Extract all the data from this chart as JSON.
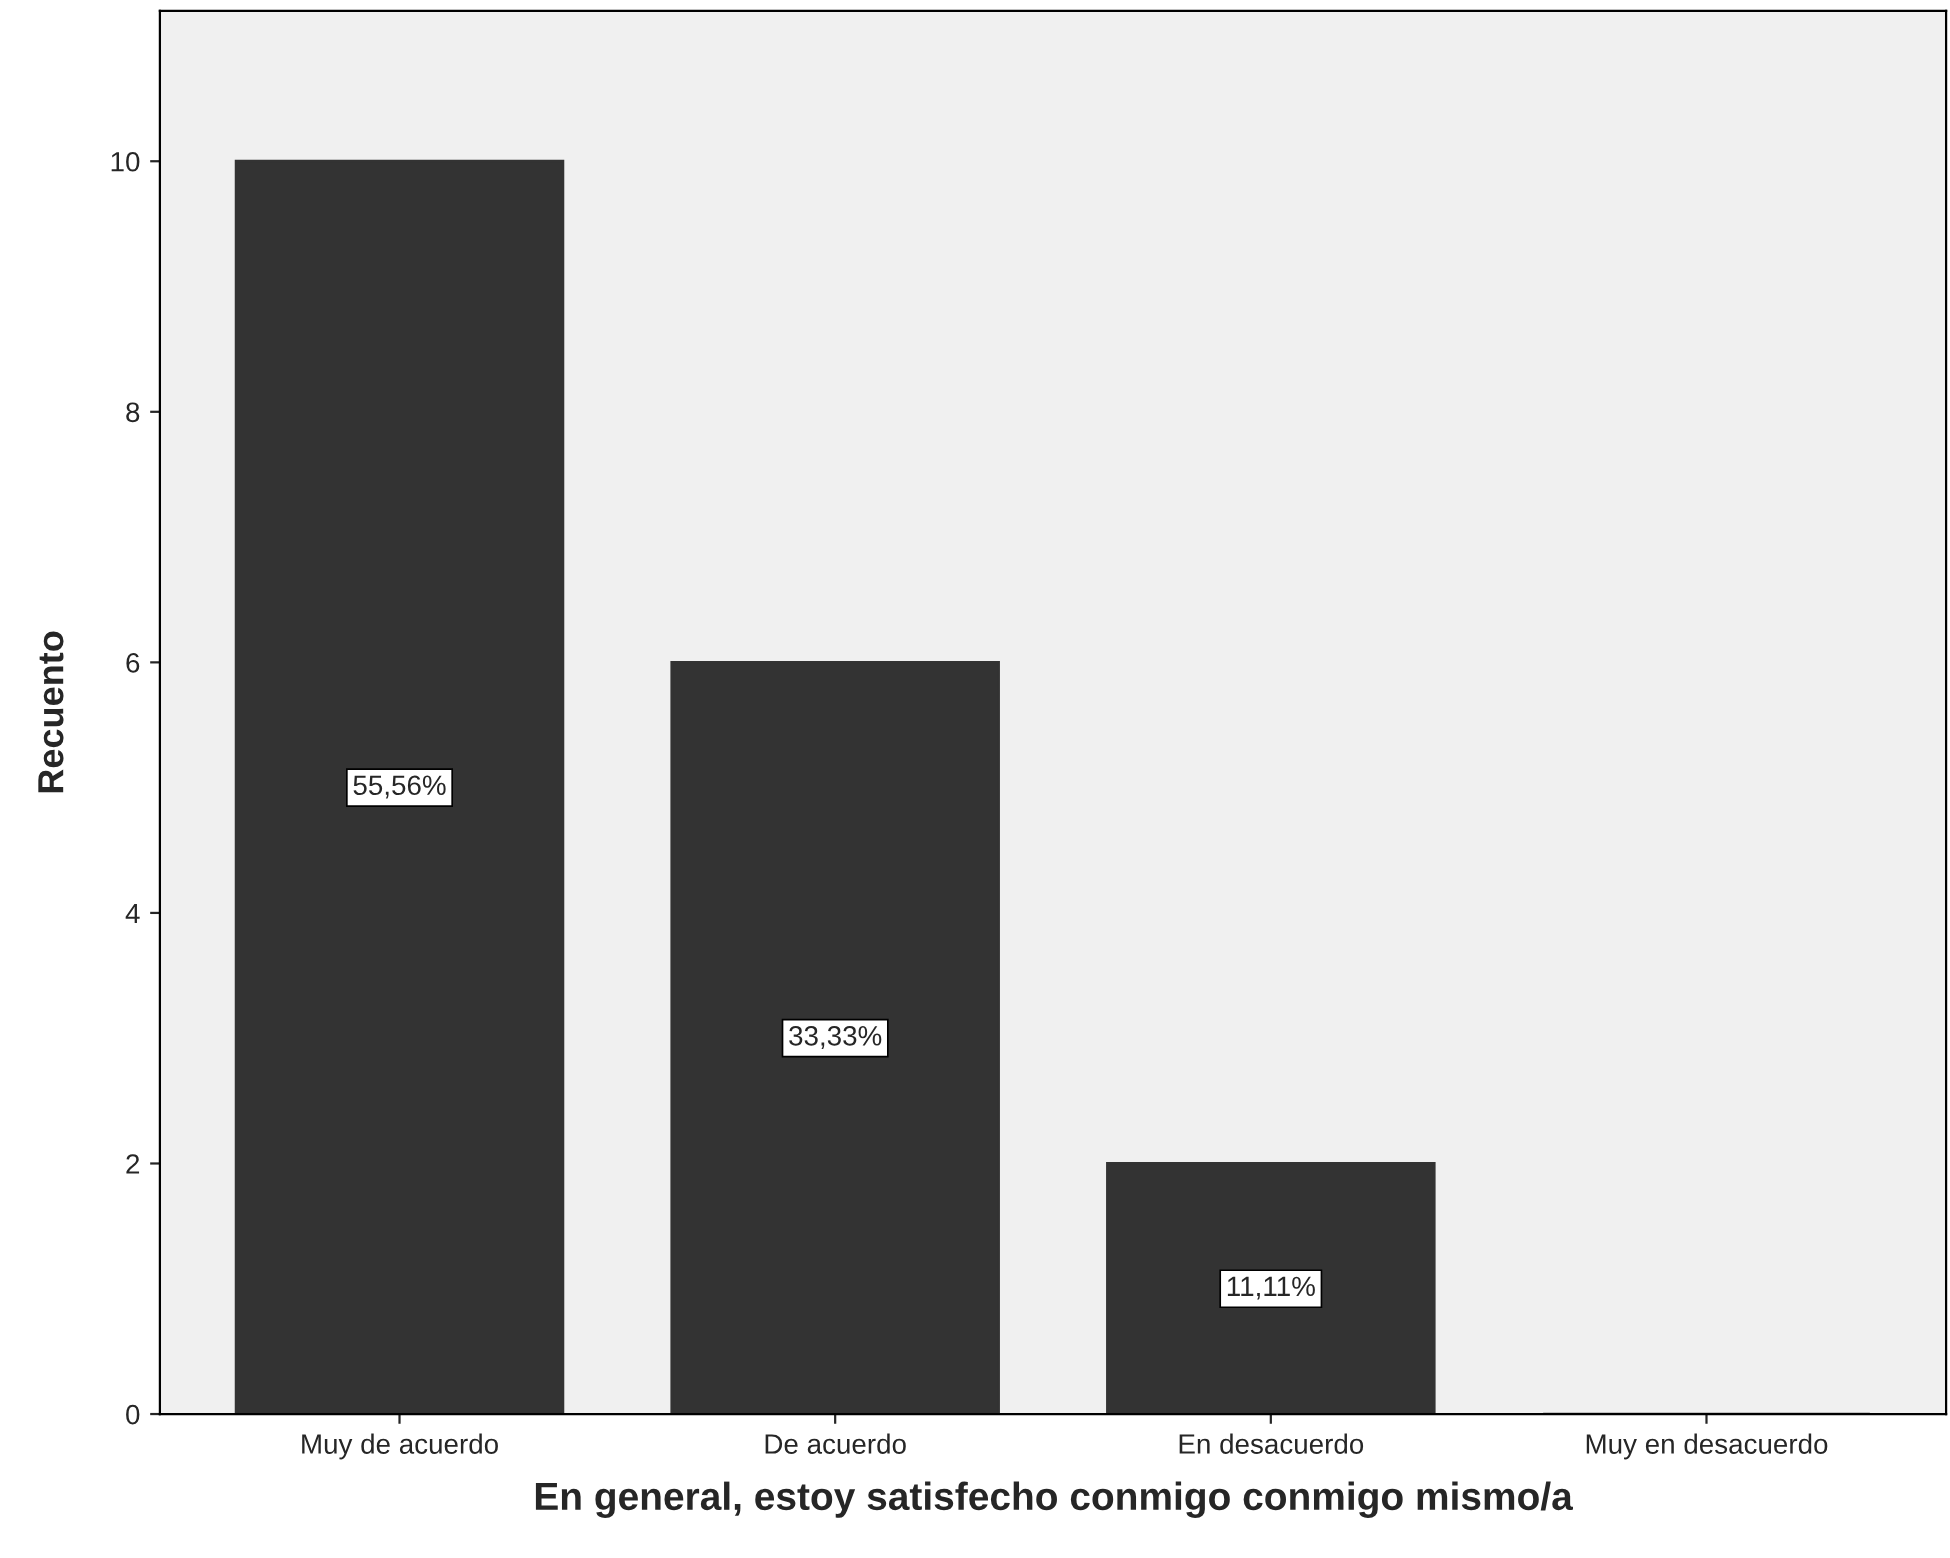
{
  "chart_data": {
    "type": "bar",
    "xlabel": "En general, estoy satisfecho conmigo conmigo mismo/a",
    "ylabel": "Recuento",
    "categories": [
      "Muy de acuerdo",
      "De acuerdo",
      "En desacuerdo",
      "Muy en desacuerdo"
    ],
    "values": [
      10,
      6,
      2,
      0
    ],
    "annotations": [
      "55,56%",
      "33,33%",
      "11,11%"
    ],
    "color": "#333333",
    "ylim": [
      0,
      11.2
    ],
    "yticks": [
      0,
      2,
      4,
      6,
      8,
      10
    ],
    "grid": false,
    "legend": false
  }
}
